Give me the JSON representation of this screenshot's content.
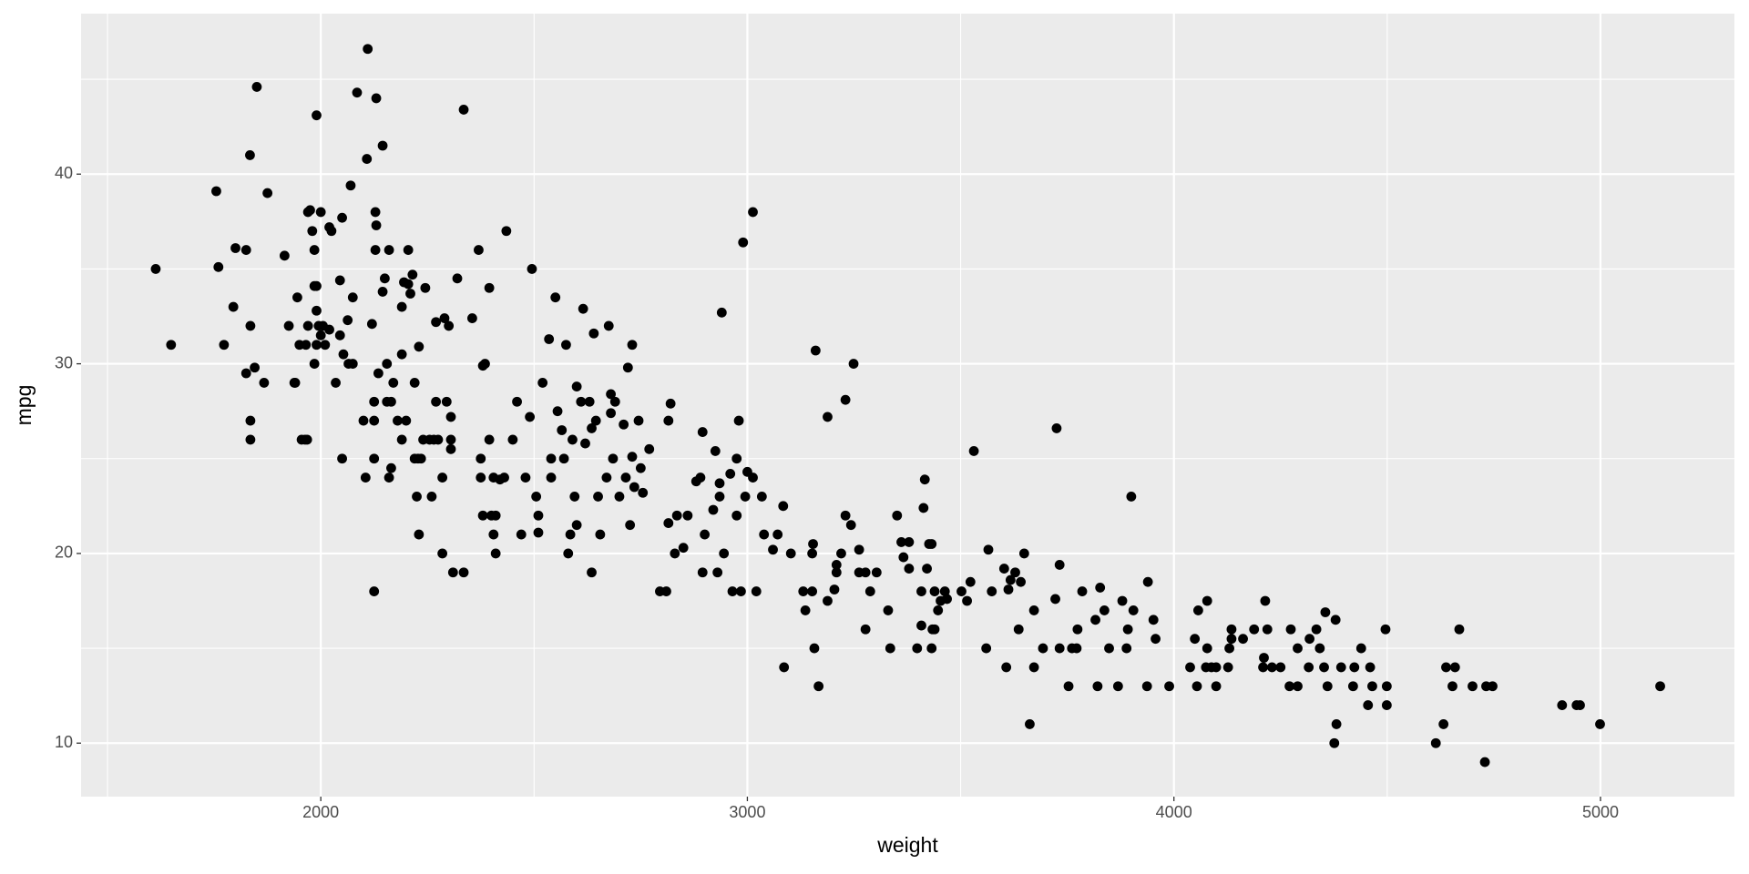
{
  "chart_data": {
    "type": "scatter",
    "x_label": "weight",
    "y_label": "mpg",
    "color": "#000000",
    "grid": true,
    "xlim": [
      1438,
      5314
    ],
    "ylim": [
      7.18,
      48.46
    ],
    "xticks": [
      2000,
      3000,
      4000,
      5000
    ],
    "yticks": [
      10,
      20,
      30,
      40
    ],
    "x": [
      1613,
      1649,
      1755,
      1760,
      1773,
      1795,
      1800,
      1825,
      1834,
      1835,
      1835,
      1835,
      1845,
      1850,
      1825,
      1867,
      1875,
      1915,
      1925,
      1938,
      1940,
      1945,
      1950,
      1955,
      1963,
      1965,
      1968,
      1970,
      1970,
      1975,
      1980,
      1985,
      1985,
      1990,
      1990,
      1985,
      1990,
      1990,
      1995,
      2000,
      2000,
      2005,
      2010,
      2020,
      2020,
      2025,
      2035,
      2045,
      2045,
      2050,
      2050,
      2053,
      2063,
      2065,
      2070,
      2075,
      2075,
      2085,
      2100,
      2105,
      2108,
      2110,
      2120,
      2125,
      2125,
      2125,
      2125,
      2128,
      2128,
      2130,
      2130,
      2135,
      2145,
      2145,
      2150,
      2155,
      2155,
      2160,
      2160,
      2165,
      2165,
      2170,
      2180,
      2190,
      2190,
      2190,
      2195,
      2200,
      2205,
      2205,
      2210,
      2215,
      2220,
      2220,
      2225,
      2228,
      2230,
      2230,
      2235,
      2240,
      2245,
      2255,
      2260,
      2265,
      2270,
      2270,
      2275,
      2285,
      2285,
      2290,
      2295,
      2300,
      2305,
      2305,
      2305,
      2310,
      2320,
      2335,
      2335,
      2355,
      2370,
      2375,
      2375,
      2380,
      2380,
      2385,
      2395,
      2395,
      2400,
      2405,
      2405,
      2410,
      2410,
      2420,
      2430,
      2435,
      2450,
      2460,
      2470,
      2480,
      2490,
      2495,
      2505,
      2510,
      2510,
      2520,
      2535,
      2540,
      2540,
      2550,
      2555,
      2565,
      2570,
      2575,
      2580,
      2585,
      2590,
      2595,
      2600,
      2600,
      2610,
      2615,
      2620,
      2630,
      2635,
      2635,
      2640,
      2645,
      2650,
      2655,
      2670,
      2675,
      2680,
      2680,
      2685,
      2690,
      2700,
      2710,
      2715,
      2720,
      2725,
      2730,
      2730,
      2735,
      2745,
      2750,
      2755,
      2770,
      2795,
      2810,
      2815,
      2815,
      2820,
      2830,
      2835,
      2850,
      2860,
      2880,
      2890,
      2895,
      2895,
      2900,
      2920,
      2925,
      2930,
      2935,
      2935,
      2940,
      2945,
      2960,
      2965,
      2975,
      2975,
      2980,
      2985,
      2990,
      2995,
      3013,
      3000,
      3013,
      3034,
      3039,
      3021,
      3060,
      3071,
      3084,
      3086,
      3102,
      3131,
      3136,
      3152,
      3152,
      3154,
      3157,
      3160,
      3167,
      3188,
      3188,
      3204,
      3209,
      3209,
      3220,
      3230,
      3230,
      3243,
      3249,
      3262,
      3262,
      3277,
      3277,
      3288,
      3303,
      3330,
      3335,
      3351,
      3361,
      3366,
      3379,
      3379,
      3398,
      3408,
      3408,
      3413,
      3416,
      3421,
      3426,
      3432,
      3432,
      3434,
      3439,
      3439,
      3447,
      3453,
      3463,
      3468,
      3502,
      3515,
      3523,
      3531,
      3560,
      3565,
      3573,
      3607,
      3602,
      3612,
      3617,
      3628,
      3636,
      3641,
      3649,
      3662,
      3672,
      3672,
      3693,
      3722,
      3725,
      3732,
      3732,
      3753,
      3761,
      3772,
      3774,
      3785,
      3816,
      3821,
      3827,
      3837,
      3848,
      3869,
      3879,
      3889,
      3892,
      3900,
      3905,
      3937,
      3939,
      3952,
      3957,
      3989,
      4038,
      4049,
      4054,
      4057,
      4075,
      4078,
      4078,
      4088,
      4099,
      4099,
      4127,
      4130,
      4135,
      4135,
      4162,
      4188,
      4209,
      4211,
      4214,
      4219,
      4230,
      4250,
      4271,
      4274,
      4290,
      4290,
      4316,
      4318,
      4334,
      4342,
      4352,
      4355,
      4360,
      4376,
      4379,
      4381,
      4392,
      4420,
      4423,
      4439,
      4455,
      4460,
      4465,
      4496,
      4499,
      4499,
      4614,
      4632,
      4638,
      4653,
      4659,
      4669,
      4700,
      4729,
      4732,
      4747,
      4910,
      4944,
      4952,
      4999,
      5140
    ],
    "values": [
      35,
      31,
      39.1,
      35.1,
      31,
      33,
      36.1,
      36,
      41,
      32,
      27,
      26,
      29.8,
      44.6,
      29.5,
      29,
      39,
      35.7,
      32,
      29,
      29,
      33.5,
      31,
      26,
      26,
      31,
      26,
      32,
      38,
      38.1,
      37,
      34.1,
      36,
      34.1,
      31,
      30,
      43.1,
      32.8,
      32,
      31.5,
      38,
      32,
      31,
      31.8,
      37.2,
      37,
      29,
      34.4,
      31.5,
      25,
      37.7,
      30.5,
      32.3,
      30,
      39.4,
      30,
      33.5,
      44.3,
      27,
      24,
      40.8,
      46.6,
      32.1,
      18,
      27,
      28,
      25,
      38,
      36,
      37.3,
      44,
      29.5,
      33.8,
      41.5,
      34.5,
      30,
      28,
      24,
      36,
      28,
      24.5,
      29,
      27,
      26,
      30.5,
      33,
      34.3,
      27,
      34.2,
      36,
      33.7,
      34.7,
      25,
      29,
      23,
      25,
      21,
      30.9,
      25,
      26,
      34,
      26,
      23,
      26,
      32.2,
      28,
      26,
      20,
      24,
      32.4,
      28,
      32,
      27.2,
      26,
      25.5,
      19,
      34.5,
      19,
      43.4,
      32.4,
      36,
      24,
      25,
      22,
      29.9,
      30,
      34,
      26,
      22,
      24,
      21,
      20,
      22,
      23.9,
      24,
      37,
      26,
      28,
      21,
      24,
      27.2,
      35,
      23,
      22,
      21.1,
      29,
      31.3,
      24,
      25,
      33.5,
      27.5,
      26.5,
      25,
      31,
      20,
      21,
      26,
      23,
      28.8,
      21.5,
      28,
      32.9,
      25.8,
      28,
      19,
      26.6,
      31.6,
      27,
      23,
      21,
      24,
      32,
      28.4,
      27.4,
      25,
      28,
      23,
      26.8,
      24,
      29.8,
      21.5,
      25.1,
      31,
      23.5,
      27,
      24.5,
      23.2,
      25.5,
      18,
      18,
      21.6,
      27,
      27.9,
      20,
      22,
      20.3,
      22,
      23.8,
      24,
      19,
      26.4,
      21,
      22.3,
      25.4,
      19,
      23,
      23.7,
      32.7,
      20,
      24.2,
      18,
      25,
      22,
      27,
      18,
      36.4,
      23,
      38,
      24.3,
      24,
      23,
      21,
      18,
      20.2,
      21,
      22.5,
      14,
      20,
      18,
      17,
      18,
      20,
      20.5,
      15,
      30.7,
      13,
      17.5,
      27.2,
      18.1,
      19.4,
      19,
      20,
      28.1,
      22,
      21.5,
      30,
      20.2,
      19,
      16,
      19,
      18,
      19,
      17,
      15,
      22,
      20.6,
      19.8,
      20.6,
      19.2,
      15,
      18,
      16.2,
      22.4,
      23.9,
      19.2,
      20.5,
      20.5,
      15,
      16,
      18,
      16,
      17,
      17.5,
      18,
      17.6,
      18,
      17.5,
      18.5,
      25.4,
      15,
      20.2,
      18,
      14,
      19.2,
      18.1,
      18.6,
      19,
      16,
      18.5,
      20,
      11,
      14,
      17,
      15,
      17.6,
      26.6,
      19.4,
      15,
      13,
      15,
      15,
      16,
      18,
      16.5,
      13,
      18.2,
      17,
      15,
      13,
      17.5,
      15,
      16,
      23,
      17,
      13,
      18.5,
      16.5,
      15.5,
      13,
      14,
      15.5,
      13,
      17,
      14,
      17.5,
      15,
      14,
      13,
      14,
      14,
      15,
      15.5,
      16,
      15.5,
      16,
      14,
      14.5,
      17.5,
      16,
      14,
      14,
      13,
      16,
      15,
      13,
      14,
      15.5,
      16,
      15,
      14,
      16.9,
      13,
      10,
      16.5,
      11,
      14,
      13,
      14,
      15,
      12,
      14,
      13,
      16,
      13,
      12,
      10,
      11,
      14,
      13,
      14,
      16,
      13,
      9,
      13,
      13,
      12,
      12,
      12,
      11,
      13
    ]
  }
}
